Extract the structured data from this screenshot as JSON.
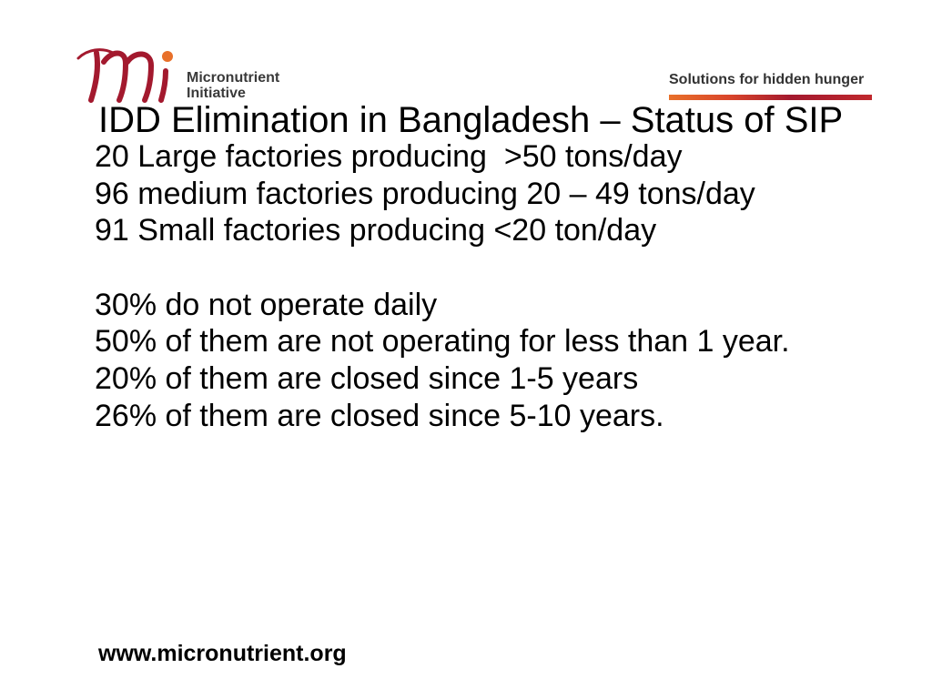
{
  "slide": {
    "header": {
      "logo": {
        "icon": "micronutrient-initiative-logo-mark",
        "name_line1": "Micronutrient",
        "name_line2": "Initiative"
      },
      "tagline": "Solutions for hidden hunger"
    },
    "title": "IDD Elimination in Bangladesh – Status of SIP",
    "factory_lines": [
      "20 Large factories producing  >50 tons/day",
      "96 medium factories producing 20 – 49 tons/day",
      "91 Small factories producing <20 ton/day"
    ],
    "operation_lines": [
      "30% do not operate daily",
      "50% of them are not operating for less than 1 year.",
      "20% of them are closed since 1-5 years",
      "26% of them are closed since 5-10 years."
    ],
    "footer_url": "www.micronutrient.org"
  },
  "colors": {
    "brand_red": "#a3192e",
    "accent_orange": "#e8702a",
    "text": "#000000",
    "logo_text": "#3a3a3a"
  }
}
